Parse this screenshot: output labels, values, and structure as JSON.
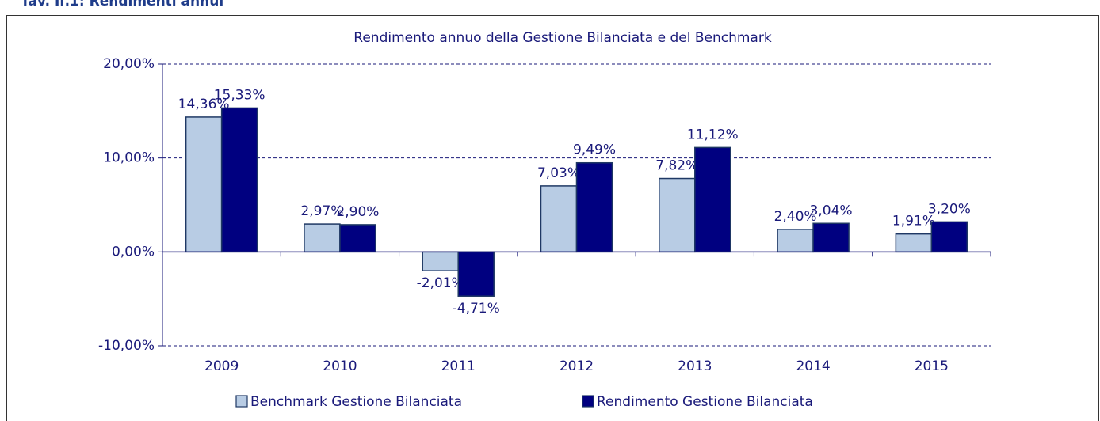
{
  "header": {
    "title": "Tav. II.1: Rendimenti annui"
  },
  "chart_data": {
    "type": "bar",
    "title": "Rendimento annuo della Gestione Bilanciata e del Benchmark",
    "categories": [
      "2009",
      "2010",
      "2011",
      "2012",
      "2013",
      "2014",
      "2015"
    ],
    "series": [
      {
        "name": "Benchmark Gestione Bilanciata",
        "color": "#b8cce4",
        "values": [
          14.36,
          2.97,
          -2.01,
          7.03,
          7.82,
          2.4,
          1.91
        ],
        "value_labels": [
          "14,36%",
          "2,97%",
          "-2,01%",
          "7,03%",
          "7,82%",
          "2,40%",
          "1,91%"
        ]
      },
      {
        "name": "Rendimento Gestione Bilanciata",
        "color": "#000080",
        "values": [
          15.33,
          2.9,
          -4.71,
          9.49,
          11.12,
          3.04,
          3.2
        ],
        "value_labels": [
          "15,33%",
          "2,90%",
          "-4,71%",
          "9,49%",
          "11,12%",
          "3,04%",
          "3,20%"
        ]
      }
    ],
    "ylim": [
      -10,
      20
    ],
    "yticks": [
      {
        "value": -10,
        "label": "-10,00%"
      },
      {
        "value": 0,
        "label": "0,00%"
      },
      {
        "value": 10,
        "label": "10,00%"
      },
      {
        "value": 20,
        "label": "20,00%"
      }
    ],
    "grid": true,
    "legend": "bottom"
  }
}
